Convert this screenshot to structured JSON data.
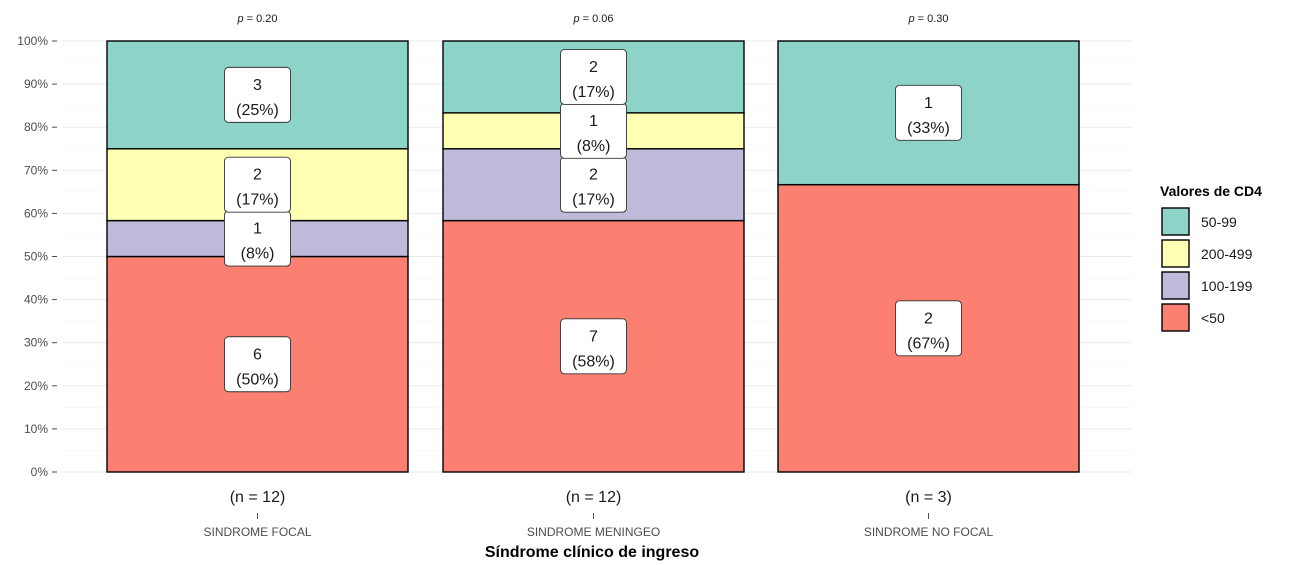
{
  "chart_data": {
    "type": "bar",
    "stacked": true,
    "normalized": true,
    "xlabel": "Síndrome clínico de ingreso",
    "ylabel": "",
    "ylim": [
      0,
      100
    ],
    "y_ticks": [
      "0%",
      "10%",
      "20%",
      "30%",
      "40%",
      "50%",
      "60%",
      "70%",
      "80%",
      "90%",
      "100%"
    ],
    "grid": true,
    "legend": {
      "title": "Valores de CD4",
      "position": "right",
      "entries": [
        {
          "label": "50-99",
          "color": "#8dd3c7"
        },
        {
          "label": "200-499",
          "color": "#ffffb3"
        },
        {
          "label": "100-199",
          "color": "#bebada"
        },
        {
          "label": "<50",
          "color": "#fb8072"
        }
      ]
    },
    "stack_order_bottom_to_top": [
      "<50",
      "100-199",
      "200-499",
      "50-99"
    ],
    "categories": [
      {
        "name": "SINDROME FOCAL",
        "n_label": "(n = 12)",
        "p_label": "p = 0.20",
        "segments": [
          {
            "group": "<50",
            "count": 6,
            "pct": 50,
            "label_count": "6",
            "label_pct": "(50%)"
          },
          {
            "group": "100-199",
            "count": 1,
            "pct": 8.33,
            "label_count": "1",
            "label_pct": "(8%)"
          },
          {
            "group": "200-499",
            "count": 2,
            "pct": 16.67,
            "label_count": "2",
            "label_pct": "(17%)"
          },
          {
            "group": "50-99",
            "count": 3,
            "pct": 25,
            "label_count": "3",
            "label_pct": "(25%)"
          }
        ]
      },
      {
        "name": "SINDROME MENINGEO",
        "n_label": "(n = 12)",
        "p_label": "p = 0.06",
        "segments": [
          {
            "group": "<50",
            "count": 7,
            "pct": 58.33,
            "label_count": "7",
            "label_pct": "(58%)"
          },
          {
            "group": "100-199",
            "count": 2,
            "pct": 16.67,
            "label_count": "2",
            "label_pct": "(17%)"
          },
          {
            "group": "200-499",
            "count": 1,
            "pct": 8.33,
            "label_count": "1",
            "label_pct": "(8%)"
          },
          {
            "group": "50-99",
            "count": 2,
            "pct": 16.67,
            "label_count": "2",
            "label_pct": "(17%)"
          }
        ]
      },
      {
        "name": "SINDROME NO FOCAL",
        "n_label": "(n = 3)",
        "p_label": "p = 0.30",
        "segments": [
          {
            "group": "<50",
            "count": 2,
            "pct": 66.67,
            "label_count": "2",
            "label_pct": "(67%)"
          },
          {
            "group": "50-99",
            "count": 1,
            "pct": 33.33,
            "label_count": "1",
            "label_pct": "(33%)"
          }
        ]
      }
    ]
  }
}
